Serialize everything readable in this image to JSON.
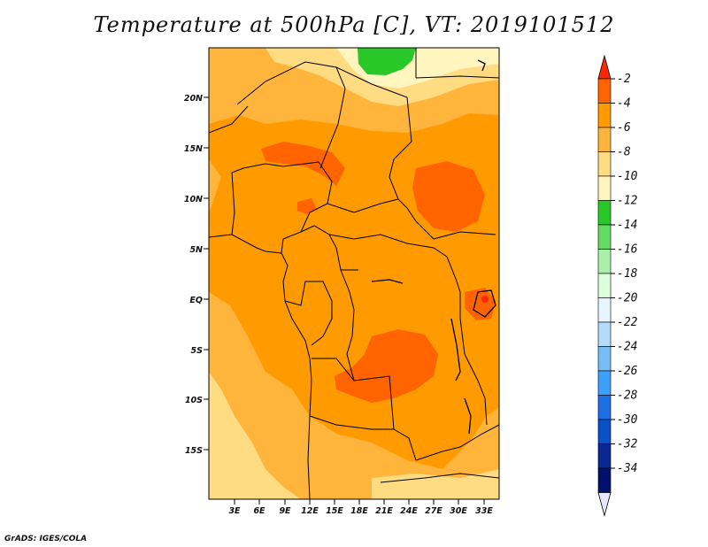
{
  "title": "Temperature at 500hPa [C], VT: 2019101512",
  "credit": "GrADS: IGES/COLA",
  "map": {
    "lat_ticks": [
      "20N",
      "15N",
      "10N",
      "5N",
      "EQ",
      "5S",
      "10S",
      "15S"
    ],
    "lon_ticks": [
      "3E",
      "6E",
      "9E",
      "12E",
      "15E",
      "18E",
      "21E",
      "24E",
      "27E",
      "30E",
      "33E"
    ]
  },
  "colorbar": {
    "labels": [
      "-2",
      "-4",
      "-6",
      "-8",
      "-10",
      "-12",
      "-14",
      "-16",
      "-18",
      "-20",
      "-22",
      "-24",
      "-26",
      "-28",
      "-30",
      "-32",
      "-34"
    ],
    "colors": [
      "#ff2800",
      "#ff6400",
      "#ff9b00",
      "#ffb43c",
      "#ffdc82",
      "#fff5be",
      "#28c828",
      "#64dc64",
      "#aaf0aa",
      "#dcffdc",
      "#e6f5ff",
      "#b4dcfa",
      "#78bef5",
      "#3ca0ff",
      "#1e6ee6",
      "#0a50c8",
      "#0a2890",
      "#00106c",
      "#e6e6ff"
    ]
  }
}
